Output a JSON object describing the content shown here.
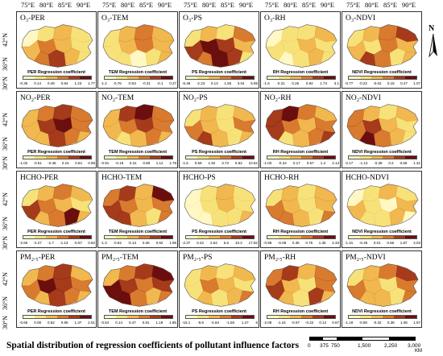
{
  "top_axis": [
    "75°E",
    "80°E",
    "85°E",
    "90°E",
    "75°E",
    "80°E",
    "85°E",
    "90°E",
    "75°E",
    "80°E",
    "85°E",
    "90°E",
    "75°E",
    "80°E",
    "85°E",
    "90°E",
    "75°E",
    "80°E",
    "85°E",
    "90°E"
  ],
  "left_axis": [
    "42°N",
    "36°N",
    "30°N",
    "42°N",
    "36°N",
    "30°N",
    "42°N",
    "36°N",
    "30°N",
    "42°N",
    "36°N",
    "30°N"
  ],
  "panels": [
    {
      "title": "O₃-PER",
      "legend_title": "PER Regression coefficient",
      "ticks": [
        "-0.36",
        "0.14",
        "0.49",
        "0.84",
        "1.23",
        "1.77"
      ],
      "palette": [
        "#fff8c4",
        "#f7e27a",
        "#f0b84e",
        "#d97b2e",
        "#a63b1b",
        "#6b0e0e"
      ],
      "pattern": [
        0,
        1,
        2,
        1,
        2,
        3,
        2,
        1,
        3,
        4,
        2,
        1
      ]
    },
    {
      "title": "O₃-TEM",
      "legend_title": "TEM Regression coefficient",
      "ticks": [
        "-1.2",
        "-0.76",
        "-0.53",
        "-0.31",
        "-0.1",
        "0.27"
      ],
      "palette": [
        "#fff8c4",
        "#f7e27a",
        "#f0b84e",
        "#d97b2e",
        "#a63b1b",
        "#6b0e0e"
      ],
      "pattern": [
        1,
        2,
        3,
        2,
        1,
        2,
        3,
        2,
        1,
        0,
        1,
        2
      ]
    },
    {
      "title": "O₃-PS",
      "legend_title": "PS Regression coefficient",
      "ticks": [
        "-6.48",
        "-2.23",
        "0.13",
        "1.55",
        "3.04",
        "5.85"
      ],
      "palette": [
        "#fff8c4",
        "#f7e27a",
        "#f0b84e",
        "#d97b2e",
        "#a63b1b",
        "#6b0e0e"
      ],
      "pattern": [
        1,
        2,
        1,
        3,
        4,
        5,
        4,
        2,
        3,
        5,
        4,
        1
      ]
    },
    {
      "title": "O₃-RH",
      "legend_title": "RH Regression coefficient",
      "ticks": [
        "-1.6",
        "-0.31",
        "0.26",
        "0.92",
        "1.74",
        "3.1"
      ],
      "palette": [
        "#fff8c4",
        "#f7e27a",
        "#f0b84e",
        "#d97b2e",
        "#a63b1b",
        "#6b0e0e"
      ],
      "pattern": [
        0,
        1,
        1,
        2,
        1,
        1,
        2,
        1,
        0,
        1,
        2,
        1
      ]
    },
    {
      "title": "O₃-NDVI",
      "legend_title": "NDVI Regression coefficient",
      "ticks": [
        "-0.77",
        "-0.22",
        "-0.02",
        "0.15",
        "0.47",
        "1.07"
      ],
      "palette": [
        "#fff8c4",
        "#f7e27a",
        "#f0b84e",
        "#d97b2e",
        "#a63b1b",
        "#6b0e0e"
      ],
      "pattern": [
        1,
        2,
        3,
        4,
        2,
        1,
        3,
        2,
        4,
        3,
        1,
        2
      ]
    },
    {
      "title": "NO₂-PER",
      "legend_title": "PER Regression coefficient",
      "ticks": [
        "-1.02",
        "-0.51",
        "-0.36",
        "0.16",
        "0.54",
        "0.99"
      ],
      "palette": [
        "#fff8c4",
        "#f7e27a",
        "#f0b84e",
        "#d97b2e",
        "#a63b1b",
        "#6b0e0e"
      ],
      "pattern": [
        2,
        3,
        4,
        3,
        2,
        4,
        5,
        3,
        2,
        4,
        3,
        2
      ]
    },
    {
      "title": "NO₂-TEM",
      "legend_title": "TEM Regression coefficient",
      "ticks": [
        "-0.91",
        "-0.19",
        "0.31",
        "0.89",
        "1.12",
        "1.78"
      ],
      "palette": [
        "#fff8c4",
        "#f7e27a",
        "#f0b84e",
        "#d97b2e",
        "#a63b1b",
        "#6b0e0e"
      ],
      "pattern": [
        2,
        4,
        5,
        3,
        2,
        3,
        4,
        3,
        1,
        2,
        3,
        2
      ]
    },
    {
      "title": "NO₂-PS",
      "legend_title": "PS Regression coefficient",
      "ticks": [
        "-1.5",
        "0.59",
        "1.92",
        "3.73",
        "5.92",
        "10.62"
      ],
      "palette": [
        "#fff8c4",
        "#f7e27a",
        "#f0b84e",
        "#d97b2e",
        "#a63b1b",
        "#6b0e0e"
      ],
      "pattern": [
        1,
        2,
        1,
        2,
        3,
        2,
        1,
        3,
        4,
        2,
        1,
        2
      ]
    },
    {
      "title": "NO₂-RH",
      "legend_title": "RH Regression coefficient",
      "ticks": [
        "-1.03",
        "-0.24",
        "0.17",
        "0.67",
        "1.4",
        "2.14"
      ],
      "palette": [
        "#fff8c4",
        "#f7e27a",
        "#f0b84e",
        "#d97b2e",
        "#a63b1b",
        "#6b0e0e"
      ],
      "pattern": [
        4,
        5,
        3,
        2,
        4,
        3,
        2,
        3,
        1,
        2,
        3,
        4
      ]
    },
    {
      "title": "NO₂-NDVI",
      "legend_title": "NDVI Regression coefficient",
      "ticks": [
        "-2.17",
        "-1.13",
        "-0.38",
        "0.2",
        "0.69",
        "1.31"
      ],
      "palette": [
        "#fff8c4",
        "#f7e27a",
        "#f0b84e",
        "#d97b2e",
        "#a63b1b",
        "#6b0e0e"
      ],
      "pattern": [
        3,
        2,
        1,
        2,
        3,
        4,
        2,
        1,
        5,
        3,
        2,
        1
      ]
    },
    {
      "title": "HCHO-PER",
      "legend_title": "PER Regression coefficient",
      "ticks": [
        "-2.66",
        "-2.27",
        "-1.7",
        "-1.13",
        "-0.57",
        "0.82"
      ],
      "palette": [
        "#fff8c4",
        "#f7e27a",
        "#f0b84e",
        "#d97b2e",
        "#a63b1b",
        "#6b0e0e"
      ],
      "pattern": [
        1,
        2,
        3,
        2,
        4,
        3,
        2,
        1,
        2,
        3,
        5,
        2
      ]
    },
    {
      "title": "HCHO-TEM",
      "legend_title": "TEM Regression coefficient",
      "ticks": [
        "-1.3",
        "-0.62",
        "-0.13",
        "0.36",
        "0.92",
        "1.96"
      ],
      "palette": [
        "#fff8c4",
        "#f7e27a",
        "#f0b84e",
        "#d97b2e",
        "#a63b1b",
        "#6b0e0e"
      ],
      "pattern": [
        3,
        4,
        2,
        5,
        4,
        3,
        2,
        3,
        4,
        2,
        1,
        3
      ]
    },
    {
      "title": "HCHO-PS",
      "legend_title": "PS Regression coefficient",
      "ticks": [
        "-2.37",
        "0.42",
        "2.64",
        "5.6",
        "10.2",
        "17.92"
      ],
      "palette": [
        "#fff8c4",
        "#f7e27a",
        "#f0b84e",
        "#d97b2e",
        "#a63b1b",
        "#6b0e0e"
      ],
      "pattern": [
        0,
        1,
        2,
        1,
        0,
        1,
        2,
        1,
        0,
        1,
        1,
        2
      ]
    },
    {
      "title": "HCHO-RH",
      "legend_title": "RH Regression coefficient",
      "ticks": [
        "-0.98",
        "-0.08",
        "0.35",
        "0.75",
        "1.36",
        "2.33"
      ],
      "palette": [
        "#fff8c4",
        "#f7e27a",
        "#f0b84e",
        "#d97b2e",
        "#a63b1b",
        "#6b0e0e"
      ],
      "pattern": [
        1,
        2,
        1,
        2,
        3,
        2,
        1,
        2,
        3,
        2,
        1,
        3
      ]
    },
    {
      "title": "HCHO-NDVI",
      "legend_title": "NDVI Regression coefficient",
      "ticks": [
        "-1.31",
        "-0.45",
        "0.01",
        "0.66",
        "1.87",
        "4.03"
      ],
      "palette": [
        "#fff8c4",
        "#f7e27a",
        "#f0b84e",
        "#d97b2e",
        "#a63b1b",
        "#6b0e0e"
      ],
      "pattern": [
        0,
        1,
        2,
        1,
        2,
        1,
        0,
        2,
        1,
        1,
        2,
        0
      ]
    },
    {
      "title": "PM₂.₅-PER",
      "legend_title": "PER Regression coefficient",
      "ticks": [
        "-0.65",
        "0.08",
        "0.52",
        "0.95",
        "1.37",
        "2.01"
      ],
      "palette": [
        "#fff8c4",
        "#f7e27a",
        "#f0b84e",
        "#d97b2e",
        "#a63b1b",
        "#6b0e0e"
      ],
      "pattern": [
        2,
        3,
        4,
        2,
        3,
        5,
        4,
        3,
        2,
        4,
        3,
        2
      ]
    },
    {
      "title": "PM₂.₅-TEM",
      "legend_title": "TEM Regression coefficient",
      "ticks": [
        "-0.54",
        "0.14",
        "0.47",
        "0.81",
        "1.18",
        "1.85"
      ],
      "palette": [
        "#fff8c4",
        "#f7e27a",
        "#f0b84e",
        "#d97b2e",
        "#a63b1b",
        "#6b0e0e"
      ],
      "pattern": [
        2,
        3,
        4,
        5,
        5,
        4,
        3,
        4,
        5,
        3,
        2,
        3
      ]
    },
    {
      "title": "PM₂.₅-PS",
      "legend_title": "PS Regression coefficient",
      "ticks": [
        "-15.1",
        "-9.8",
        "-4.84",
        "-1.56",
        "1.27",
        "6"
      ],
      "palette": [
        "#fff8c4",
        "#f7e27a",
        "#f0b84e",
        "#d97b2e",
        "#a63b1b",
        "#6b0e0e"
      ],
      "pattern": [
        1,
        2,
        1,
        2,
        1,
        3,
        2,
        1,
        2,
        1,
        2,
        3
      ]
    },
    {
      "title": "PM₂.₅-RH",
      "legend_title": "RH Regression coefficient",
      "ticks": [
        "-2.08",
        "-1.15",
        "-0.57",
        "-0.22",
        "0.12",
        "0.67"
      ],
      "palette": [
        "#fff8c4",
        "#f7e27a",
        "#f0b84e",
        "#d97b2e",
        "#a63b1b",
        "#6b0e0e"
      ],
      "pattern": [
        3,
        4,
        2,
        3,
        4,
        2,
        1,
        3,
        2,
        1,
        4,
        2
      ]
    },
    {
      "title": "PM₂.₅-NDVI",
      "legend_title": "NDVI Regression coefficient",
      "ticks": [
        "-1.19",
        "-0.58",
        "-0.32",
        "0.38",
        "1.06",
        "1.97"
      ],
      "palette": [
        "#fff8c4",
        "#f7e27a",
        "#f0b84e",
        "#d97b2e",
        "#a63b1b",
        "#6b0e0e"
      ],
      "pattern": [
        1,
        2,
        3,
        4,
        3,
        2,
        1,
        3,
        2,
        2,
        1,
        3
      ]
    }
  ],
  "caption": "Spatial distribution of regression coefficients of pollutant influence factors",
  "scalebar": {
    "labels": [
      "0",
      "375",
      "750",
      "1,500",
      "2,250",
      "3,000"
    ],
    "unit": "KM"
  },
  "north_label": "N"
}
